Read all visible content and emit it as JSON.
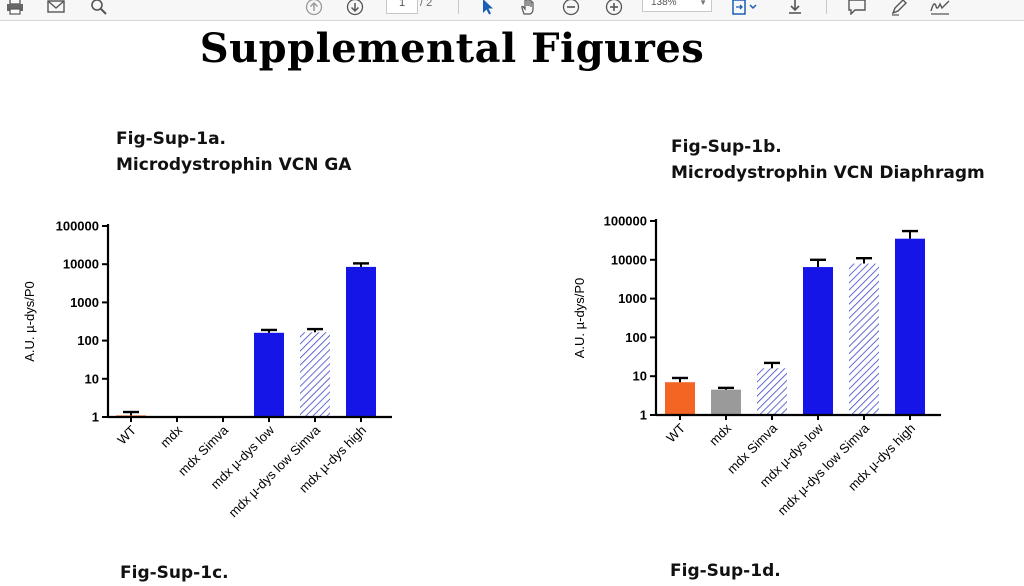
{
  "toolbar": {
    "current_page": "1",
    "total_pages": "/ 2",
    "zoom_level": "138%"
  },
  "page_title": "Supplemental Figures",
  "figures": [
    {
      "label": "Fig-Sup-1a.",
      "title": "Microdystrophin VCN GA"
    },
    {
      "label": "Fig-Sup-1b.",
      "title": "Microdystrophin VCN Diaphragm"
    },
    {
      "label": "Fig-Sup-1c.",
      "title": ""
    },
    {
      "label": "Fig-Sup-1d.",
      "title": ""
    }
  ],
  "chart_data": [
    {
      "type": "bar",
      "title": "Fig-Sup-1a. Microdystrophin VCN GA",
      "ylabel": "A.U. µ-dys/P0",
      "yscale": "log",
      "ylim": [
        1,
        100000
      ],
      "yticks": [
        "1",
        "10",
        "100",
        "1000",
        "10000",
        "100000"
      ],
      "categories": [
        "WT",
        "mdx",
        "mdx Simva",
        "mdx µ-dys low",
        "mdx µ-dys low Simva",
        "mdx µ-dys high"
      ],
      "values": [
        1.1,
        1,
        1,
        160,
        165,
        8500
      ],
      "errors": [
        1.35,
        null,
        null,
        190,
        200,
        10500
      ],
      "colors": [
        "#f26522",
        "#9a9a9a",
        "#c5cbea",
        "#1515e8",
        "#c5cbea",
        "#1515e8"
      ],
      "hatched": [
        false,
        false,
        true,
        false,
        true,
        false
      ]
    },
    {
      "type": "bar",
      "title": "Fig-Sup-1b. Microdystrophin VCN Diaphragm",
      "ylabel": "A.U. µ-dys/P0",
      "yscale": "log",
      "ylim": [
        1,
        100000
      ],
      "yticks": [
        "1",
        "10",
        "100",
        "1000",
        "10000",
        "100000"
      ],
      "categories": [
        "WT",
        "mdx",
        "mdx Simva",
        "mdx µ-dys low",
        "mdx µ-dys low Simva",
        "mdx µ-dys high"
      ],
      "values": [
        7,
        4.5,
        16,
        6500,
        8000,
        35000
      ],
      "errors": [
        9,
        5,
        22,
        10000,
        11000,
        55000
      ],
      "colors": [
        "#f26522",
        "#9a9a9a",
        "#c5cbea",
        "#1515e8",
        "#c5cbea",
        "#1515e8"
      ],
      "hatched": [
        false,
        false,
        true,
        false,
        true,
        false
      ]
    }
  ]
}
